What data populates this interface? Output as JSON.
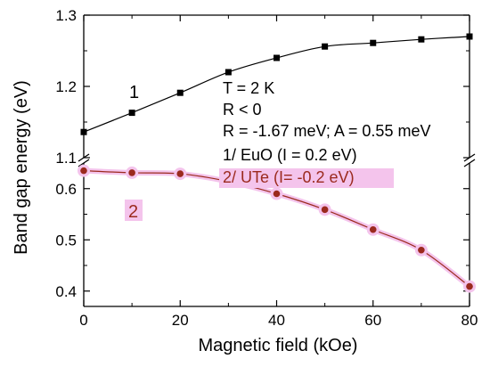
{
  "chart_data": {
    "type": "line",
    "xlabel": "Magnetic field (kOe)",
    "ylabel": "Band gap energy (eV)",
    "xlim": [
      0,
      80
    ],
    "x_ticks": [
      "0",
      "20",
      "40",
      "60",
      "80"
    ],
    "axis_break": "broken y-axis between 0.65 and 1.1",
    "y_upper": {
      "range": [
        1.1,
        1.3
      ],
      "ticks": [
        "1.1",
        "1.2",
        "1.3"
      ]
    },
    "y_lower": {
      "range": [
        0.37,
        0.65
      ],
      "ticks": [
        "0.4",
        "0.5",
        "0.6"
      ]
    },
    "grid": false,
    "series": [
      {
        "name": "1/ EuO (I = 0.2 eV)",
        "tag": "1",
        "color": "#000000",
        "marker": "square",
        "axis_segment": "upper",
        "x": [
          0,
          10,
          20,
          30,
          40,
          50,
          60,
          70,
          80
        ],
        "y": [
          1.136,
          1.163,
          1.191,
          1.22,
          1.24,
          1.256,
          1.261,
          1.266,
          1.27
        ]
      },
      {
        "name": "2/ UTe  (I= -0.2 eV)",
        "tag": "2",
        "color": "#9b2a1e",
        "highlight": "#f4c4ec",
        "marker": "circle",
        "axis_segment": "lower",
        "x": [
          0,
          10,
          20,
          30,
          40,
          50,
          60,
          70,
          80
        ],
        "y": [
          0.635,
          0.631,
          0.629,
          0.614,
          0.59,
          0.559,
          0.52,
          0.48,
          0.409
        ]
      }
    ],
    "annotations": [
      "T = 2 K",
      "R < 0",
      "R = -1.67 meV; A = 0.55 meV",
      "1/ EuO (I = 0.2 eV)",
      "2/ UTe  (I= -0.2 eV)"
    ]
  }
}
